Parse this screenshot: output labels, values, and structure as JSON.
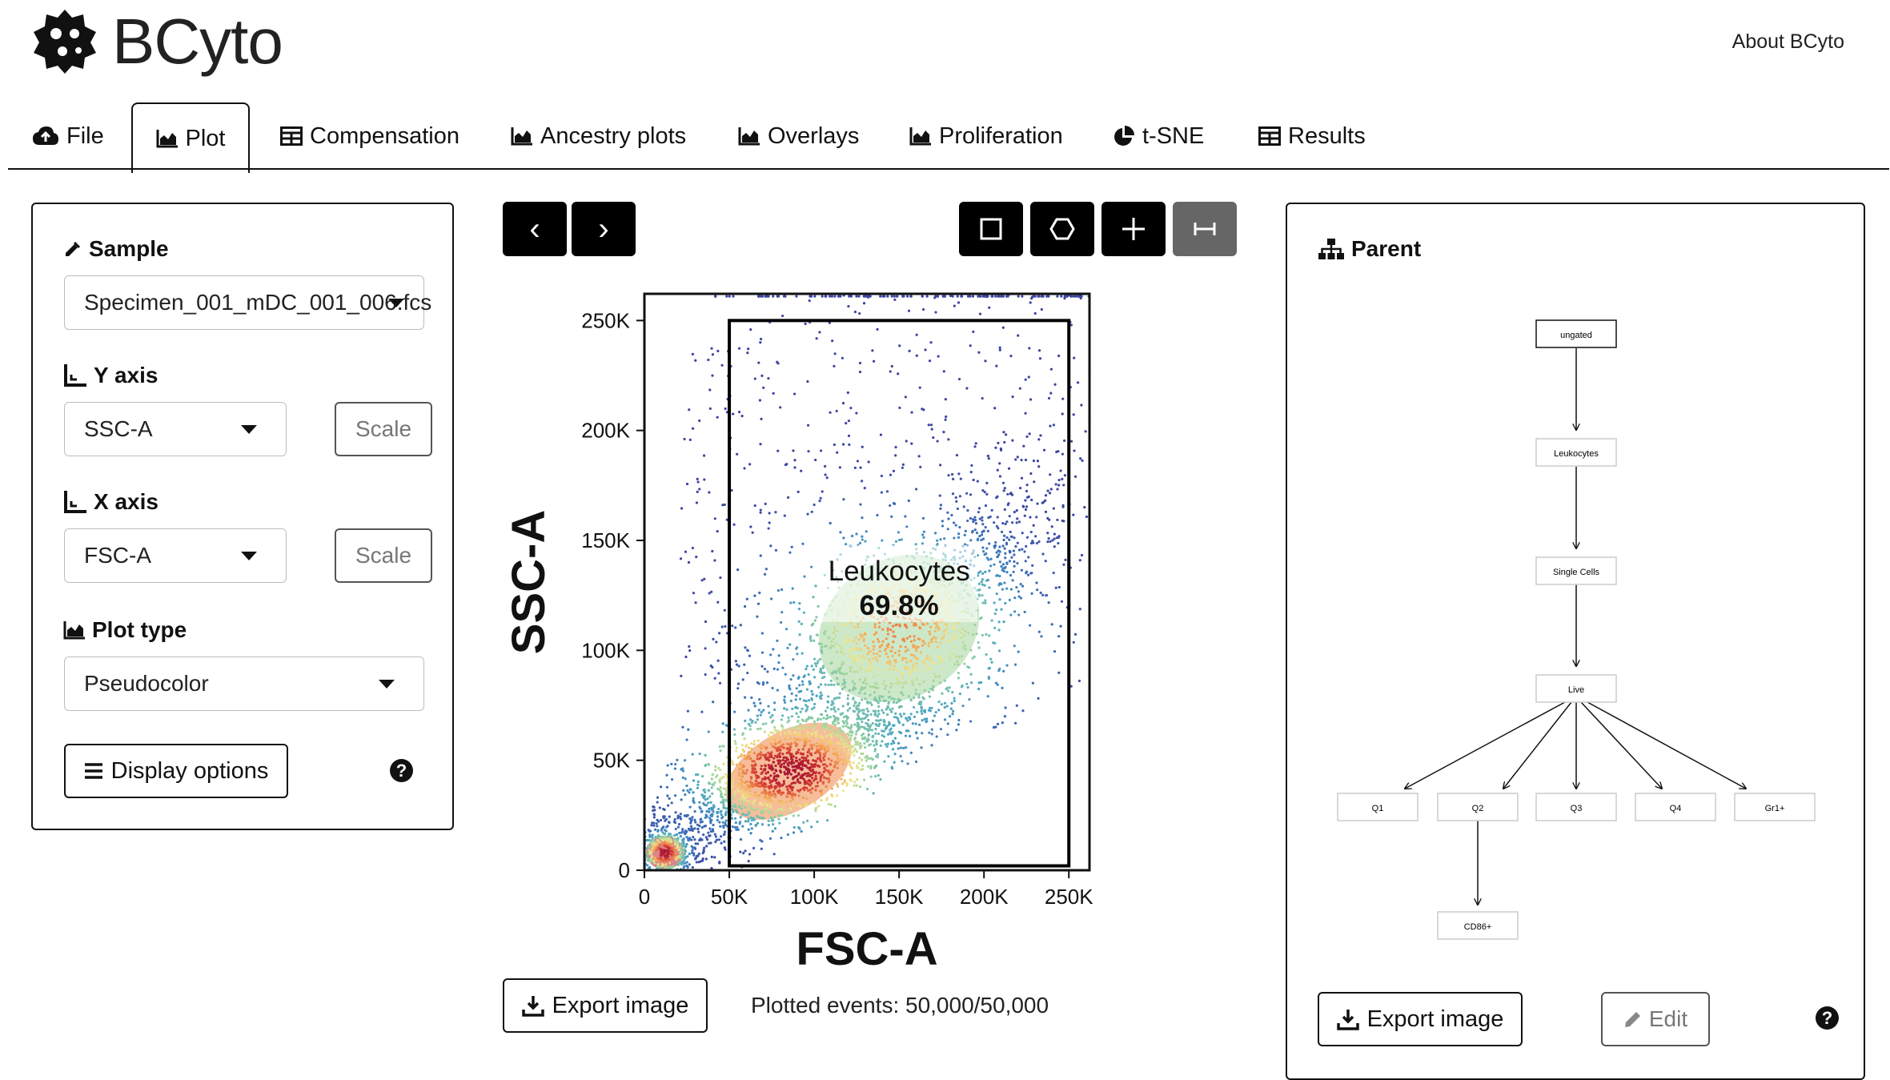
{
  "header": {
    "app_title": "BCyto",
    "about_link": "About BCyto"
  },
  "tabs": [
    {
      "label": "File",
      "icon": "cloud-upload-icon"
    },
    {
      "label": "Plot",
      "icon": "area-chart-icon",
      "active": true
    },
    {
      "label": "Compensation",
      "icon": "table-icon"
    },
    {
      "label": "Ancestry plots",
      "icon": "area-chart-icon"
    },
    {
      "label": "Overlays",
      "icon": "area-chart-icon"
    },
    {
      "label": "Proliferation",
      "icon": "area-chart-icon"
    },
    {
      "label": "t-SNE",
      "icon": "pie-chart-icon"
    },
    {
      "label": "Results",
      "icon": "table-icon"
    }
  ],
  "left_panel": {
    "sample_label": "Sample",
    "sample_value": "Specimen_001_mDC_001_006.fcs",
    "y_axis_label": "Y axis",
    "y_axis_value": "SSC-A",
    "x_axis_label": "X axis",
    "x_axis_value": "FSC-A",
    "scale_label": "Scale",
    "plot_type_label": "Plot type",
    "plot_type_value": "Pseudocolor",
    "display_options_label": "Display options",
    "help_glyph": "?"
  },
  "plot": {
    "nav_prev": "‹",
    "nav_next": "›",
    "tools": [
      "rectangle-gate-icon",
      "polygon-gate-icon",
      "quadrant-gate-icon",
      "interval-gate-icon"
    ],
    "selected_tool": "interval-gate-icon",
    "export_label": "Export image",
    "plotted_events": "Plotted events: 50,000/50,000"
  },
  "chart_data": {
    "type": "scatter",
    "plot_style": "pseudocolor density",
    "xlabel": "FSC-A",
    "ylabel": "SSC-A",
    "xlim": [
      0,
      262144
    ],
    "ylim": [
      0,
      262144
    ],
    "x_ticks": [
      "0",
      "50K",
      "100K",
      "150K",
      "200K",
      "250K"
    ],
    "y_ticks": [
      "0",
      "50K",
      "100K",
      "150K",
      "200K",
      "250K"
    ],
    "x_tick_values": [
      0,
      50000,
      100000,
      150000,
      200000,
      250000
    ],
    "y_tick_values": [
      0,
      50000,
      100000,
      150000,
      200000,
      250000
    ],
    "events_total": 50000,
    "gate": {
      "name": "Leukocytes",
      "percent": "69.8%",
      "x_range": [
        50000,
        250000
      ],
      "y_range": [
        2000,
        250000
      ]
    },
    "density_centers": [
      {
        "x": 12000,
        "y": 8000,
        "spread_x": 10000,
        "spread_y": 7000,
        "weight": 0.12
      },
      {
        "x": 85000,
        "y": 45000,
        "spread_x": 45000,
        "spread_y": 20000,
        "weight": 0.5
      },
      {
        "x": 150000,
        "y": 110000,
        "spread_x": 55000,
        "spread_y": 35000,
        "weight": 0.38
      }
    ]
  },
  "right_panel": {
    "parent_label": "Parent",
    "export_label": "Export image",
    "edit_label": "Edit",
    "help_glyph": "?",
    "tree": {
      "nodes": [
        "ungated",
        "Leukocytes",
        "Single Cells",
        "Live",
        "Q1",
        "Q2",
        "Q3",
        "Q4",
        "Gr1+",
        "CD86+"
      ]
    }
  },
  "colors": {
    "accent": "#000000",
    "selected_tool": "#666666",
    "border": "#111111"
  }
}
